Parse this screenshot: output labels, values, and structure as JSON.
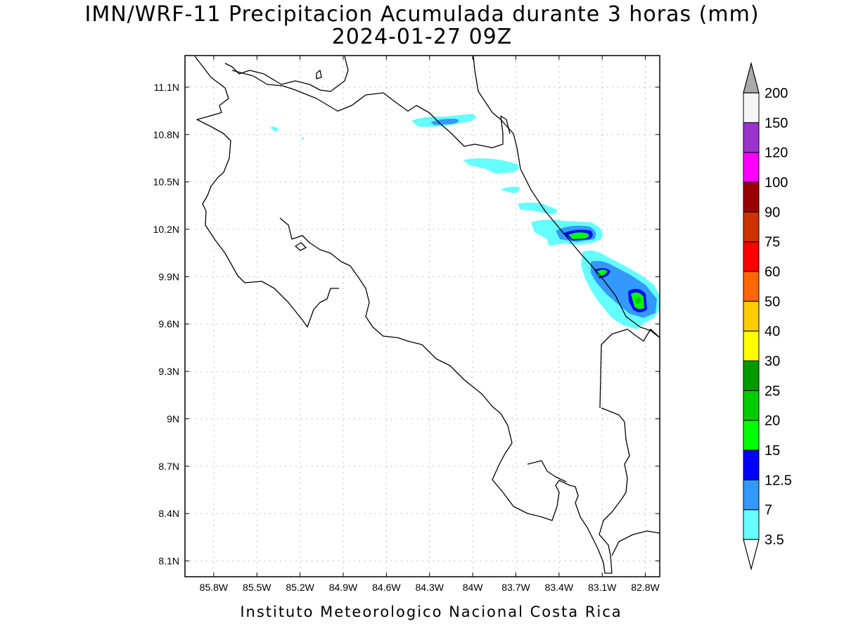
{
  "title": "IMN/WRF-11 Precipitacion Acumulada durante 3 horas (mm)",
  "subtitle": "2024-01-27 09Z",
  "footer": "Instituto Meteorologico Nacional Costa Rica",
  "map": {
    "lon_range": [
      -86.0,
      -82.7
    ],
    "lat_range": [
      8.0,
      11.3
    ],
    "lon_ticks": [
      {
        "value": -85.8,
        "label": "85.8W"
      },
      {
        "value": -85.5,
        "label": "85.5W"
      },
      {
        "value": -85.2,
        "label": "85.2W"
      },
      {
        "value": -84.9,
        "label": "84.9W"
      },
      {
        "value": -84.6,
        "label": "84.6W"
      },
      {
        "value": -84.3,
        "label": "84.3W"
      },
      {
        "value": -84.0,
        "label": "84W"
      },
      {
        "value": -83.7,
        "label": "83.7W"
      },
      {
        "value": -83.4,
        "label": "83.4W"
      },
      {
        "value": -83.1,
        "label": "83.1W"
      },
      {
        "value": -82.8,
        "label": "82.8W"
      }
    ],
    "lat_ticks": [
      {
        "value": 11.1,
        "label": "11.1N"
      },
      {
        "value": 10.8,
        "label": "10.8N"
      },
      {
        "value": 10.5,
        "label": "10.5N"
      },
      {
        "value": 10.2,
        "label": "10.2N"
      },
      {
        "value": 9.9,
        "label": "9.9N"
      },
      {
        "value": 9.6,
        "label": "9.6N"
      },
      {
        "value": 9.3,
        "label": "9.3N"
      },
      {
        "value": 9.0,
        "label": "9N"
      },
      {
        "value": 8.7,
        "label": "8.7N"
      },
      {
        "value": 8.4,
        "label": "8.4N"
      },
      {
        "value": 8.1,
        "label": "8.1N"
      }
    ],
    "grid": true,
    "coastline_color": "#000000"
  },
  "colorbar": {
    "levels": [
      "3.5",
      "7",
      "12.5",
      "15",
      "20",
      "25",
      "30",
      "40",
      "50",
      "60",
      "75",
      "90",
      "100",
      "120",
      "150",
      "200"
    ],
    "colors": [
      "#66ffff",
      "#3399ff",
      "#0000ff",
      "#00ff00",
      "#00cc00",
      "#009900",
      "#ffff00",
      "#ffcc00",
      "#ff6600",
      "#ff0000",
      "#cc3300",
      "#990000",
      "#ff00ff",
      "#9933cc",
      "#f5f5f5",
      "#aaaaaa"
    ]
  }
}
